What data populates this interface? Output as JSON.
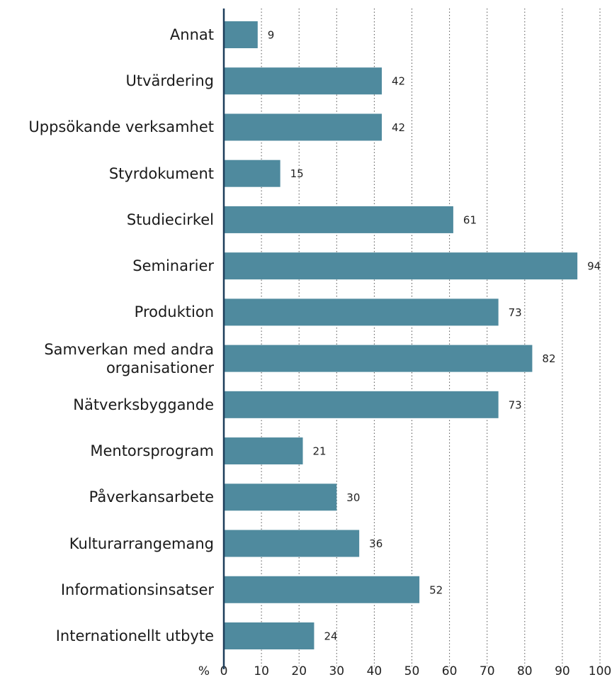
{
  "chart_data": {
    "type": "bar",
    "orientation": "horizontal",
    "categories": [
      "Annat",
      "Utvärdering",
      "Uppsökande verksamhet",
      "Styrdokument",
      "Studiecirkel",
      "Seminarier",
      "Produktion",
      "Samverkan med andra\norganisationer",
      "Nätverksbyggande",
      "Mentorsprogram",
      "Påverkansarbete",
      "Kulturarrangemang",
      "Informationsinsatser",
      "Internationellt utbyte"
    ],
    "values": [
      9,
      42,
      42,
      15,
      61,
      94,
      73,
      82,
      73,
      21,
      30,
      36,
      52,
      24
    ],
    "color": "#4f8a9e",
    "x_label": "%",
    "xlim": [
      0,
      100
    ],
    "xticks": [
      0,
      10,
      20,
      30,
      40,
      50,
      60,
      70,
      80,
      90,
      100
    ],
    "grid": true
  }
}
